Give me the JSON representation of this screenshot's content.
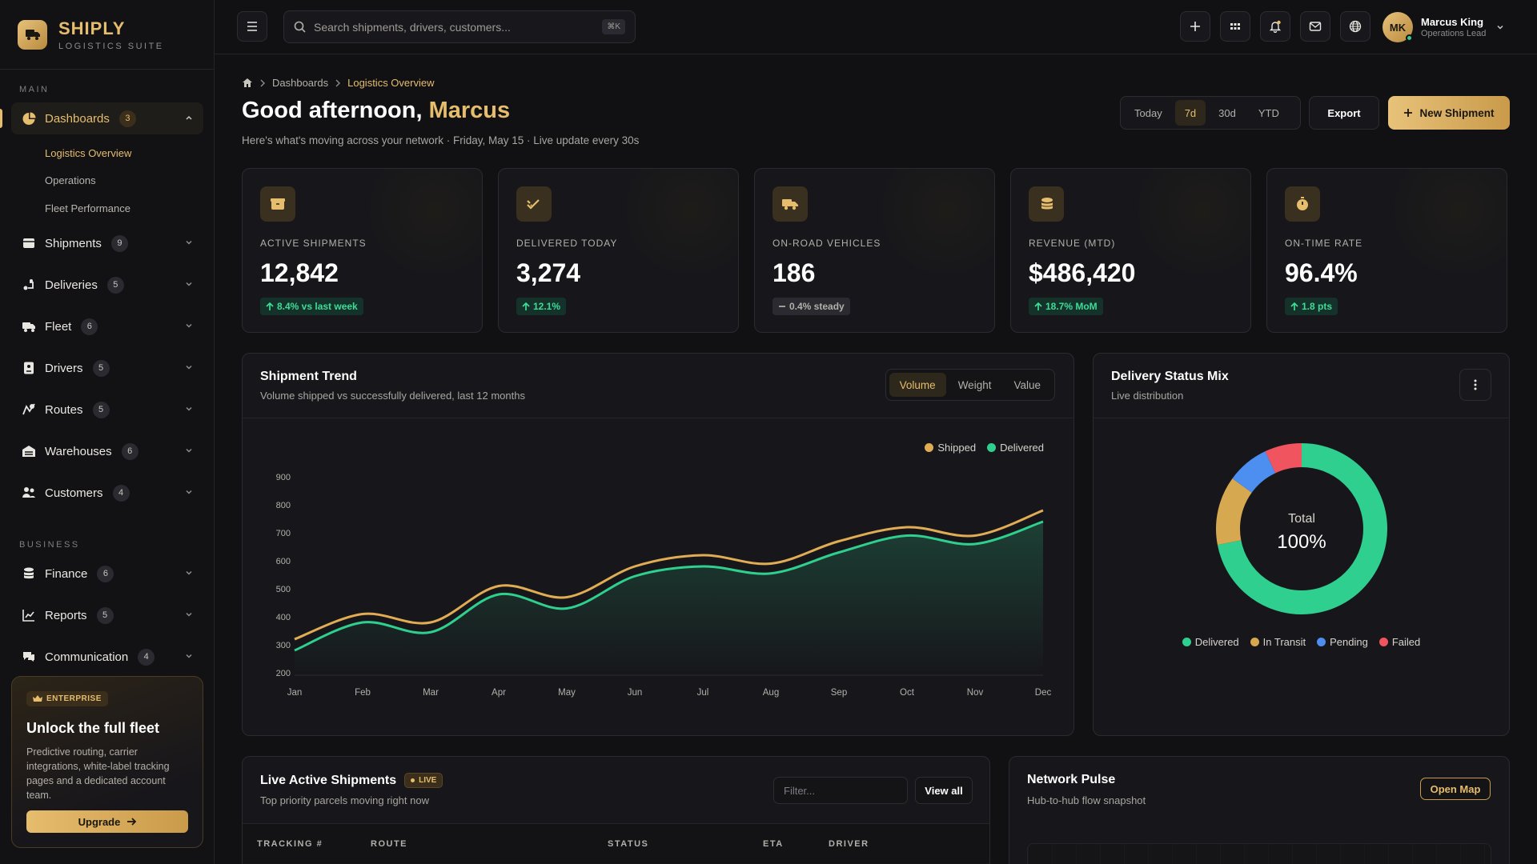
{
  "brand": {
    "name": "SHIPLY",
    "subtitle": "LOGISTICS SUITE"
  },
  "sidebar": {
    "section_main": "MAIN",
    "section_business": "BUSINESS",
    "dashboards": {
      "label": "Dashboards",
      "count": "3",
      "children": [
        "Logistics Overview",
        "Operations",
        "Fleet Performance"
      ]
    },
    "items": [
      {
        "label": "Shipments",
        "count": "9"
      },
      {
        "label": "Deliveries",
        "count": "5"
      },
      {
        "label": "Fleet",
        "count": "6"
      },
      {
        "label": "Drivers",
        "count": "5"
      },
      {
        "label": "Routes",
        "count": "5"
      },
      {
        "label": "Warehouses",
        "count": "6"
      },
      {
        "label": "Customers",
        "count": "4"
      }
    ],
    "business_items": [
      {
        "label": "Finance",
        "count": "6"
      },
      {
        "label": "Reports",
        "count": "5"
      },
      {
        "label": "Communication",
        "count": "4"
      }
    ],
    "promo": {
      "badge": "ENTERPRISE",
      "title": "Unlock the full fleet",
      "text": "Predictive routing, carrier integrations, white-label tracking pages and a dedicated account team.",
      "button": "Upgrade"
    }
  },
  "topbar": {
    "search_placeholder": "Search shipments, drivers, customers...",
    "search_shortcut": "⌘K",
    "user": {
      "initials": "MK",
      "name": "Marcus King",
      "role": "Operations Lead"
    }
  },
  "header": {
    "breadcrumb": [
      "Dashboards",
      "Logistics Overview"
    ],
    "greeting": "Good afternoon,",
    "greeting_name": "Marcus",
    "subtitle": "Here's what's moving across your network · Friday, May 15 · Live update every 30s",
    "ranges": [
      "Today",
      "7d",
      "30d",
      "YTD"
    ],
    "range_selected": "7d",
    "export_label": "Export",
    "new_shipment_label": "New Shipment"
  },
  "kpis": [
    {
      "label": "ACTIVE SHIPMENTS",
      "value": "12,842",
      "delta": "8.4% vs last week",
      "trend": "up",
      "icon": "package-icon"
    },
    {
      "label": "DELIVERED TODAY",
      "value": "3,274",
      "delta": "12.1%",
      "trend": "up",
      "icon": "double-check-icon"
    },
    {
      "label": "ON-ROAD VEHICLES",
      "value": "186",
      "delta": "0.4% steady",
      "trend": "flat",
      "icon": "truck-icon"
    },
    {
      "label": "REVENUE (MTD)",
      "value": "$486,420",
      "delta": "18.7% MoM",
      "trend": "up",
      "icon": "coins-icon"
    },
    {
      "label": "ON-TIME RATE",
      "value": "96.4%",
      "delta": "1.8 pts",
      "trend": "up",
      "icon": "stopwatch-icon"
    }
  ],
  "trend_card": {
    "title": "Shipment Trend",
    "subtitle": "Volume shipped vs successfully delivered, last 12 months",
    "tabs": [
      "Volume",
      "Weight",
      "Value"
    ],
    "tab_selected": "Volume"
  },
  "chart_data": [
    {
      "type": "area",
      "categories": [
        "Jan",
        "Feb",
        "Mar",
        "Apr",
        "May",
        "Jun",
        "Jul",
        "Aug",
        "Sep",
        "Oct",
        "Nov",
        "Dec"
      ],
      "series": [
        {
          "name": "Shipped",
          "color": "#e0ad55",
          "values": [
            320,
            410,
            380,
            510,
            470,
            580,
            620,
            590,
            670,
            720,
            690,
            780
          ]
        },
        {
          "name": "Delivered",
          "color": "#2fd08f",
          "values": [
            280,
            380,
            345,
            480,
            430,
            545,
            580,
            555,
            630,
            690,
            660,
            740
          ]
        }
      ],
      "yticks": [
        200,
        300,
        400,
        500,
        600,
        700,
        800,
        900
      ],
      "ylim": [
        200,
        900
      ],
      "legend": "top-right",
      "grid": false
    },
    {
      "type": "pie",
      "center_label": "Total",
      "center_value": "100%",
      "slices": [
        {
          "name": "Delivered",
          "value": 72,
          "color": "#2fd08f"
        },
        {
          "name": "In Transit",
          "value": 13,
          "color": "#d6a84f"
        },
        {
          "name": "Pending",
          "value": 8,
          "color": "#4d8ff0"
        },
        {
          "name": "Failed",
          "value": 7,
          "color": "#f0555f"
        }
      ]
    }
  ],
  "status_card": {
    "title": "Delivery Status Mix",
    "subtitle": "Live distribution"
  },
  "live_card": {
    "title": "Live Active Shipments",
    "badge": "LIVE",
    "subtitle": "Top priority parcels moving right now",
    "filter_placeholder": "Filter...",
    "view_all": "View all",
    "columns": [
      "TRACKING #",
      "ROUTE",
      "STATUS",
      "ETA",
      "DRIVER"
    ]
  },
  "network_card": {
    "title": "Network Pulse",
    "subtitle": "Hub-to-hub flow snapshot",
    "button": "Open Map"
  }
}
